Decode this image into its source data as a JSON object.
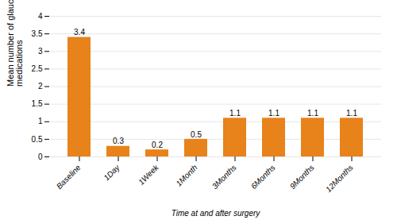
{
  "chart_data": {
    "type": "bar",
    "categories": [
      "Baseline",
      "1Day",
      "1Week",
      "1Month",
      "3Months",
      "6Months",
      "9Months",
      "12Months"
    ],
    "values": [
      3.4,
      0.3,
      0.2,
      0.5,
      1.1,
      1.1,
      1.1,
      1.1
    ],
    "color": "#E8821A",
    "xlabel": "Time at and after surgery",
    "ylabel": "Mean number of glaucoma\nmedications",
    "ylim": [
      0,
      4
    ],
    "yticks": [
      0,
      0.5,
      1,
      1.5,
      2,
      2.5,
      3,
      3.5,
      4
    ],
    "grid": true,
    "data_labels": true
  }
}
